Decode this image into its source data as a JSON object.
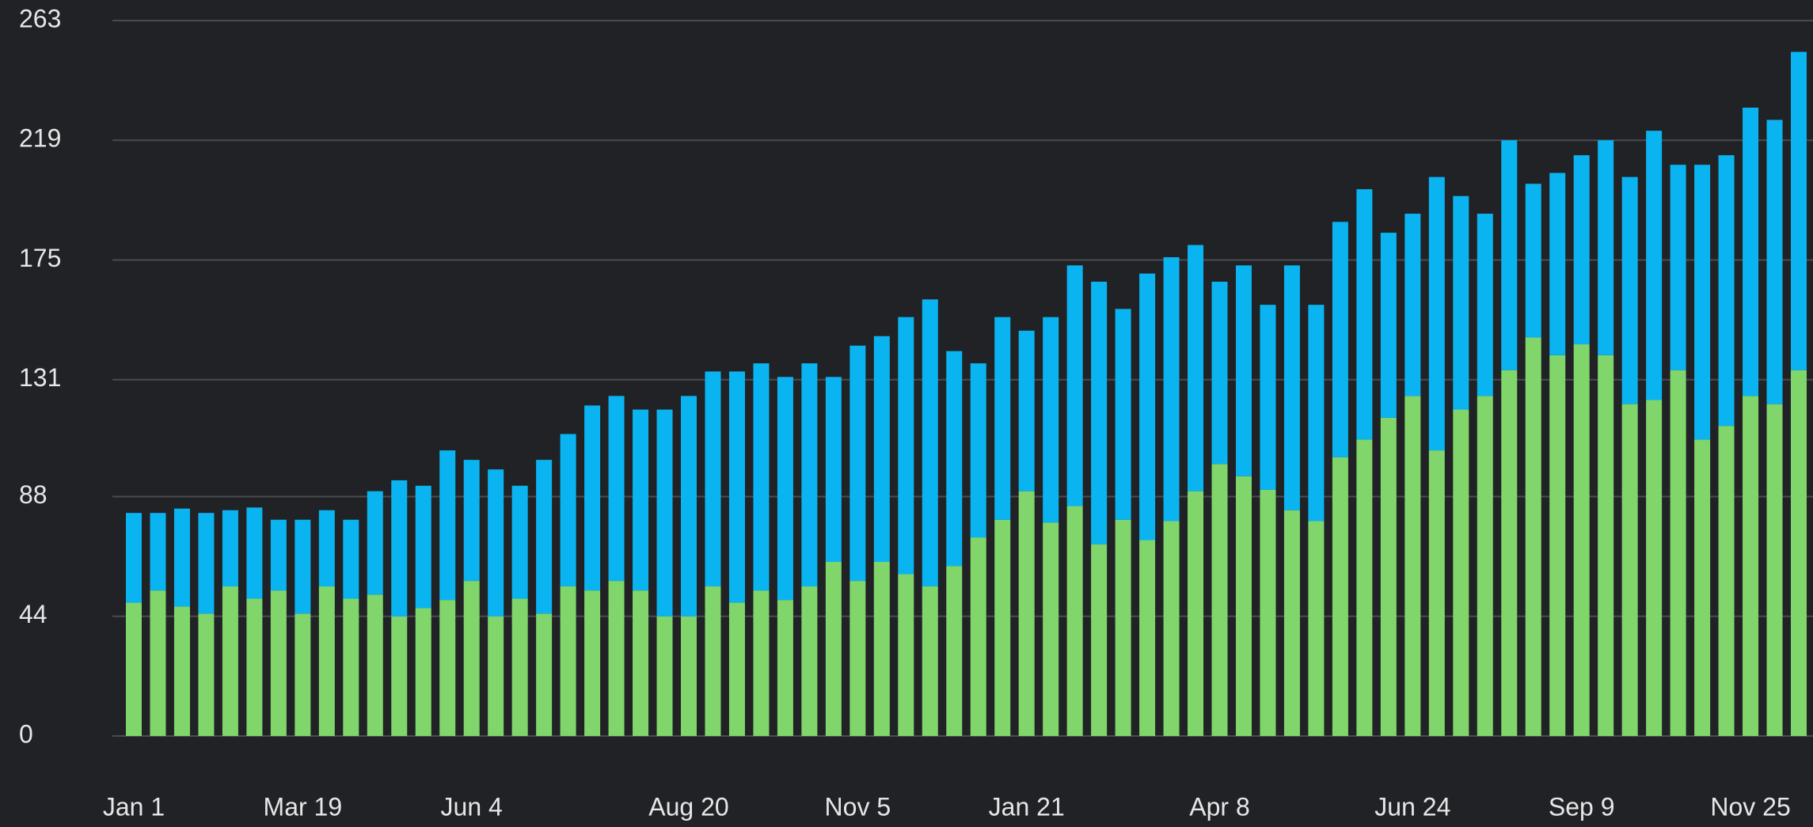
{
  "chart_data": {
    "type": "stacked_bar",
    "categories": [
      "Jan 1",
      null,
      null,
      null,
      null,
      null,
      null,
      "Mar 19",
      null,
      null,
      null,
      null,
      null,
      null,
      "Jun 4",
      null,
      null,
      null,
      null,
      null,
      null,
      null,
      null,
      "Aug 20",
      null,
      null,
      null,
      null,
      null,
      null,
      "Nov 5",
      null,
      null,
      null,
      null,
      null,
      null,
      "Jan 21",
      null,
      null,
      null,
      null,
      null,
      null,
      null,
      "Apr 8",
      null,
      null,
      null,
      null,
      null,
      null,
      null,
      "Jun 24",
      null,
      null,
      null,
      null,
      null,
      null,
      "Sep 9",
      null,
      null,
      null,
      null,
      null,
      null,
      "Nov 25",
      null,
      null
    ],
    "series": [
      {
        "color": "#80d66b",
        "values": [
          49,
          53.5,
          47.6,
          45,
          55,
          50.5,
          53.5,
          45,
          55,
          50.5,
          52,
          44,
          47,
          50,
          57,
          44,
          50.5,
          45,
          55,
          53.5,
          57,
          53.5,
          44,
          44,
          55,
          49,
          53.5,
          50,
          55,
          64,
          57,
          64,
          59.5,
          55,
          62.5,
          73,
          79.5,
          90,
          78.5,
          84.5,
          70.5,
          79.5,
          72,
          79,
          90,
          100,
          95.5,
          90.5,
          83,
          79,
          102.5,
          109,
          117,
          125,
          105,
          120,
          125,
          134.5,
          146.5,
          140,
          144,
          140,
          122,
          123.5,
          134.5,
          109,
          114,
          125,
          122,
          134.5
        ]
      },
      {
        "color": "#0ab4f0",
        "values": [
          33,
          28.5,
          36,
          37,
          28,
          33.5,
          26,
          34.5,
          28,
          29,
          38,
          50,
          45,
          55,
          44.5,
          54,
          41.5,
          56.5,
          56,
          68,
          68,
          66.5,
          76,
          81,
          79,
          85,
          83.5,
          82,
          82,
          68,
          86.5,
          83,
          94.5,
          105.5,
          79,
          64,
          74.5,
          59,
          75.5,
          88.5,
          96.5,
          77.5,
          98,
          97,
          90.5,
          67,
          77.5,
          68,
          90,
          79.5,
          86.5,
          92,
          68,
          67,
          100.5,
          78.5,
          67,
          84.5,
          56.5,
          67,
          69.5,
          79,
          83.5,
          99,
          75.5,
          101,
          99.5,
          106,
          104.5,
          117
        ]
      }
    ],
    "ylim": [
      0,
      263
    ],
    "yticks": [
      0,
      44,
      88,
      131,
      175,
      219,
      263
    ],
    "grid": true
  }
}
